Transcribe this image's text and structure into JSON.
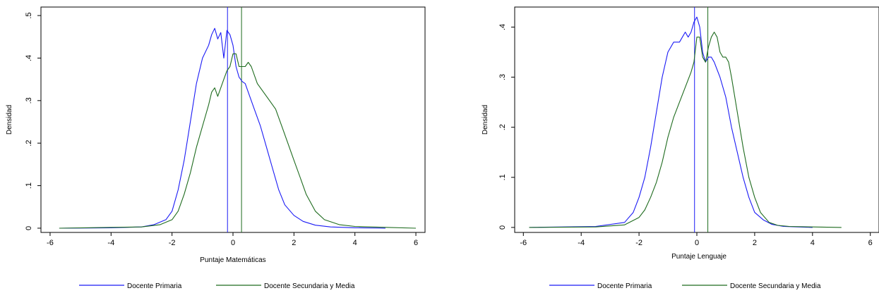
{
  "colors": {
    "primaria": "#1b1bf5",
    "secundaria": "#1e6b1e",
    "frame": "#000000"
  },
  "chart_data": [
    {
      "type": "line",
      "title": "",
      "xlabel": "Puntaje Matemáticas",
      "ylabel": "Densidad",
      "xlim": [
        -6.3,
        6.3
      ],
      "ylim": [
        -0.01,
        0.52
      ],
      "xticks": [
        -6,
        -4,
        -2,
        0,
        2,
        4,
        6
      ],
      "xtick_labels": [
        "-6",
        "-4",
        "-2",
        "0",
        "2",
        "4",
        "6"
      ],
      "yticks": [
        0,
        0.1,
        0.2,
        0.3,
        0.4,
        0.5
      ],
      "ytick_labels": [
        "0",
        ".1",
        ".2",
        ".3",
        ".4",
        ".5"
      ],
      "legend_position": "bottom",
      "vlines": [
        {
          "series": "Docente Primaria",
          "x": -0.18
        },
        {
          "series": "Docente Secundaria y Media",
          "x": 0.28
        }
      ],
      "series": [
        {
          "name": "Docente Primaria",
          "color": "#1b1bf5",
          "x": [
            -5.7,
            -4.0,
            -3.0,
            -2.6,
            -2.2,
            -2.0,
            -1.8,
            -1.6,
            -1.4,
            -1.2,
            -1.0,
            -0.8,
            -0.7,
            -0.6,
            -0.5,
            -0.4,
            -0.3,
            -0.2,
            -0.1,
            0.0,
            0.1,
            0.2,
            0.3,
            0.4,
            0.5,
            0.7,
            0.9,
            1.1,
            1.3,
            1.5,
            1.7,
            2.0,
            2.3,
            2.7,
            3.2,
            4.0,
            5.0
          ],
          "y": [
            0,
            0.001,
            0.003,
            0.008,
            0.02,
            0.04,
            0.09,
            0.16,
            0.25,
            0.34,
            0.4,
            0.43,
            0.455,
            0.47,
            0.445,
            0.46,
            0.4,
            0.465,
            0.455,
            0.43,
            0.38,
            0.355,
            0.345,
            0.34,
            0.32,
            0.28,
            0.24,
            0.19,
            0.14,
            0.09,
            0.055,
            0.03,
            0.016,
            0.007,
            0.003,
            0.001,
            0
          ]
        },
        {
          "name": "Docente Secundaria y Media",
          "color": "#1e6b1e",
          "x": [
            -5.7,
            -3.0,
            -2.4,
            -2.0,
            -1.8,
            -1.6,
            -1.4,
            -1.2,
            -1.0,
            -0.8,
            -0.7,
            -0.6,
            -0.5,
            -0.4,
            -0.3,
            -0.2,
            -0.1,
            0.0,
            0.1,
            0.2,
            0.3,
            0.4,
            0.5,
            0.6,
            0.8,
            1.0,
            1.2,
            1.4,
            1.6,
            1.8,
            2.0,
            2.2,
            2.4,
            2.7,
            3.0,
            3.5,
            4.0,
            5.0,
            6.0
          ],
          "y": [
            0,
            0.003,
            0.008,
            0.02,
            0.04,
            0.08,
            0.13,
            0.19,
            0.24,
            0.29,
            0.32,
            0.33,
            0.31,
            0.33,
            0.35,
            0.37,
            0.38,
            0.41,
            0.41,
            0.38,
            0.38,
            0.38,
            0.39,
            0.38,
            0.34,
            0.32,
            0.3,
            0.28,
            0.24,
            0.2,
            0.16,
            0.12,
            0.08,
            0.04,
            0.02,
            0.008,
            0.004,
            0.002,
            0
          ]
        }
      ]
    },
    {
      "type": "line",
      "title": "",
      "xlabel": "Puntaje Lenguaje",
      "ylabel": "Densidad",
      "xlim": [
        -6.3,
        6.3
      ],
      "ylim": [
        -0.01,
        0.44
      ],
      "xticks": [
        -6,
        -4,
        -2,
        0,
        2,
        4,
        6
      ],
      "xtick_labels": [
        "-6",
        "-4",
        "-2",
        "0",
        "2",
        "4",
        "6"
      ],
      "yticks": [
        0,
        0.1,
        0.2,
        0.3,
        0.4
      ],
      "ytick_labels": [
        "0",
        ".1",
        ".2",
        ".3",
        ".4"
      ],
      "legend_position": "bottom",
      "vlines": [
        {
          "series": "Docente Primaria",
          "x": -0.08
        },
        {
          "series": "Docente Secundaria y Media",
          "x": 0.38
        }
      ],
      "series": [
        {
          "name": "Docente Primaria",
          "color": "#1b1bf5",
          "x": [
            -5.8,
            -3.5,
            -2.5,
            -2.2,
            -2.0,
            -1.8,
            -1.6,
            -1.4,
            -1.2,
            -1.0,
            -0.8,
            -0.6,
            -0.5,
            -0.4,
            -0.3,
            -0.2,
            -0.1,
            0.0,
            0.1,
            0.2,
            0.3,
            0.4,
            0.5,
            0.6,
            0.8,
            1.0,
            1.2,
            1.4,
            1.6,
            1.8,
            2.0,
            2.3,
            2.6,
            3.0,
            3.5,
            4.0
          ],
          "y": [
            0,
            0.002,
            0.01,
            0.03,
            0.06,
            0.1,
            0.16,
            0.23,
            0.3,
            0.35,
            0.37,
            0.37,
            0.38,
            0.39,
            0.38,
            0.39,
            0.41,
            0.42,
            0.4,
            0.35,
            0.33,
            0.34,
            0.34,
            0.33,
            0.3,
            0.26,
            0.2,
            0.15,
            0.1,
            0.06,
            0.03,
            0.015,
            0.006,
            0.002,
            0.001,
            0
          ]
        },
        {
          "name": "Docente Secundaria y Media",
          "color": "#1e6b1e",
          "x": [
            -5.8,
            -3.5,
            -2.5,
            -2.0,
            -1.8,
            -1.6,
            -1.4,
            -1.2,
            -1.0,
            -0.8,
            -0.6,
            -0.4,
            -0.2,
            -0.1,
            0.0,
            0.1,
            0.2,
            0.3,
            0.4,
            0.5,
            0.6,
            0.7,
            0.8,
            0.9,
            1.0,
            1.1,
            1.2,
            1.4,
            1.6,
            1.8,
            2.0,
            2.2,
            2.5,
            2.8,
            3.2,
            4.0,
            5.0
          ],
          "y": [
            0,
            0.001,
            0.005,
            0.02,
            0.035,
            0.06,
            0.09,
            0.13,
            0.18,
            0.22,
            0.25,
            0.28,
            0.31,
            0.33,
            0.38,
            0.38,
            0.34,
            0.33,
            0.36,
            0.38,
            0.39,
            0.38,
            0.35,
            0.34,
            0.34,
            0.33,
            0.3,
            0.23,
            0.16,
            0.1,
            0.06,
            0.03,
            0.01,
            0.004,
            0.002,
            0.001,
            0
          ]
        }
      ]
    }
  ],
  "legends": [
    {
      "items": [
        {
          "label": "Docente Primaria",
          "color": "#1b1bf5"
        },
        {
          "label": "Docente Secundaria y Media",
          "color": "#1e6b1e"
        }
      ]
    },
    {
      "items": [
        {
          "label": "Docente Primaria",
          "color": "#1b1bf5"
        },
        {
          "label": "Docente Secundaria y Media",
          "color": "#1e6b1e"
        }
      ]
    }
  ]
}
